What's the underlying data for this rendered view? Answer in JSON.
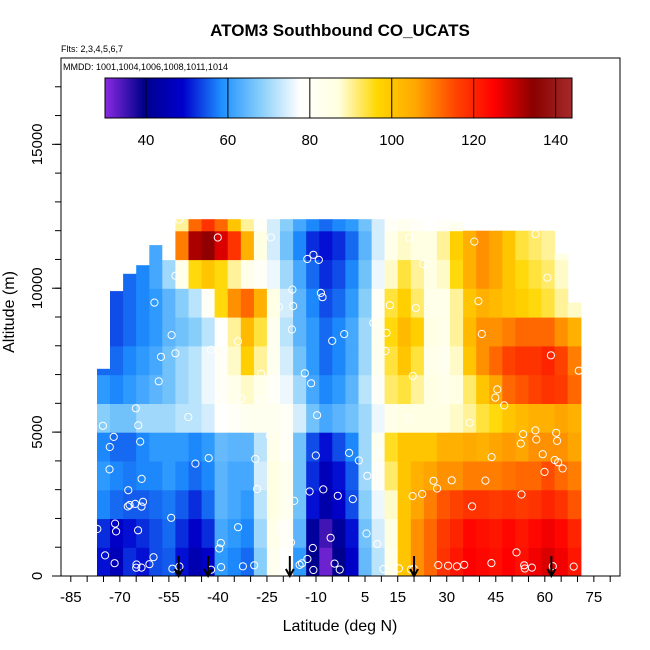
{
  "chart_data": {
    "type": "heatmap",
    "title": "ATOM3 Southbound CO_UCATS",
    "subtitle_flights": "Flts: 2,3,4,5,6,7",
    "subtitle_dates": "MMDD: 1001,1004,1006,1008,1011,1014",
    "xlabel": "Latitude (deg N)",
    "ylabel": "Altitude (m)",
    "xlim": [
      -88,
      83
    ],
    "ylim": [
      0,
      18000
    ],
    "x_ticks": [
      "-85",
      "-70",
      "-55",
      "-40",
      "-25",
      "-10",
      "5",
      "15",
      "30",
      "45",
      "60",
      "75"
    ],
    "y_ticks": [
      "0",
      "5000",
      "10000",
      "15000"
    ],
    "colorbar": {
      "range": [
        30,
        144
      ],
      "ticks": [
        "40",
        "60",
        "80",
        "100",
        "120",
        "140"
      ],
      "colors": [
        "#8a2be2",
        "#00008b",
        "#0000cd",
        "#1e90ff",
        "#87cefa",
        "#ffffff",
        "#ffffe0",
        "#ffd700",
        "#ffa500",
        "#ff4500",
        "#ff0000",
        "#8b0000",
        "#a52a2a"
      ]
    },
    "latitude_columns": [
      -75,
      -71,
      -67,
      -63,
      -59,
      -55,
      -51,
      -47,
      -43,
      -39,
      -35,
      -31,
      -27,
      -23,
      -19,
      -15,
      -11,
      -7,
      -3,
      1,
      5,
      9,
      13,
      17,
      21,
      25,
      29,
      33,
      37,
      41,
      45,
      49,
      53,
      57,
      61,
      65,
      69
    ],
    "altitude_bands": [
      0,
      1000,
      2000,
      3000,
      4000,
      5000,
      6000,
      7000,
      8000,
      9000,
      10000,
      11000,
      12000
    ],
    "top_altitude": [
      7200,
      9900,
      10500,
      10800,
      11500,
      12000,
      12400,
      12400,
      12400,
      12400,
      12400,
      12400,
      12400,
      12400,
      12400,
      12400,
      12400,
      12400,
      12400,
      12400,
      12400,
      12400,
      12400,
      12400,
      12400,
      12400,
      12400,
      12300,
      12000,
      12000,
      12000,
      12000,
      12000,
      12000,
      12000,
      11200,
      9500
    ],
    "values": [
      [
        50,
        46,
        52,
        50,
        54,
        55,
        50,
        45,
        48,
        60,
        58,
        56,
        68,
        82,
        78,
        60,
        40,
        32,
        40,
        48,
        65,
        72,
        84,
        100,
        108,
        112,
        118,
        122,
        125,
        124,
        123,
        125,
        123,
        126,
        128,
        126,
        122
      ],
      [
        52,
        48,
        50,
        52,
        54,
        56,
        52,
        48,
        52,
        62,
        60,
        58,
        70,
        84,
        80,
        64,
        42,
        35,
        42,
        50,
        66,
        74,
        86,
        100,
        108,
        112,
        117,
        120,
        124,
        123,
        122,
        124,
        122,
        124,
        126,
        124,
        120
      ],
      [
        58,
        56,
        55,
        55,
        56,
        57,
        55,
        52,
        56,
        64,
        62,
        60,
        72,
        86,
        82,
        66,
        50,
        44,
        48,
        54,
        68,
        76,
        88,
        100,
        106,
        110,
        114,
        116,
        118,
        118,
        117,
        118,
        117,
        118,
        120,
        118,
        114
      ],
      [
        60,
        58,
        57,
        58,
        58,
        60,
        58,
        56,
        58,
        64,
        62,
        62,
        74,
        86,
        82,
        66,
        52,
        46,
        50,
        55,
        70,
        80,
        92,
        100,
        104,
        106,
        108,
        108,
        110,
        110,
        110,
        111,
        112,
        112,
        115,
        112,
        110
      ],
      [
        58,
        56,
        56,
        58,
        60,
        60,
        60,
        58,
        60,
        65,
        64,
        64,
        72,
        84,
        80,
        66,
        54,
        50,
        54,
        58,
        70,
        82,
        95,
        100,
        100,
        100,
        104,
        104,
        105,
        104,
        106,
        107,
        106,
        108,
        108,
        108,
        106
      ],
      [
        68,
        66,
        66,
        70,
        70,
        70,
        72,
        72,
        74,
        78,
        80,
        82,
        82,
        82,
        80,
        74,
        66,
        62,
        64,
        66,
        70,
        76,
        84,
        86,
        86,
        86,
        86,
        88,
        90,
        94,
        96,
        100,
        102,
        104,
        104,
        106,
        104
      ],
      [
        60,
        58,
        60,
        62,
        64,
        66,
        70,
        72,
        76,
        80,
        84,
        88,
        84,
        80,
        76,
        70,
        62,
        58,
        60,
        64,
        72,
        80,
        92,
        94,
        90,
        86,
        84,
        86,
        92,
        100,
        106,
        112,
        114,
        116,
        118,
        117,
        112
      ],
      [
        56,
        56,
        58,
        60,
        62,
        66,
        70,
        72,
        76,
        80,
        88,
        98,
        90,
        82,
        74,
        66,
        60,
        56,
        58,
        62,
        70,
        82,
        94,
        100,
        94,
        84,
        82,
        88,
        100,
        108,
        112,
        116,
        118,
        118,
        120,
        116,
        110
      ],
      [
        54,
        54,
        56,
        58,
        60,
        64,
        66,
        68,
        72,
        78,
        90,
        102,
        94,
        82,
        72,
        64,
        60,
        56,
        58,
        62,
        70,
        82,
        96,
        102,
        98,
        86,
        84,
        90,
        102,
        108,
        108,
        110,
        112,
        112,
        112,
        108,
        104
      ],
      [
        56,
        54,
        56,
        58,
        60,
        64,
        68,
        72,
        80,
        96,
        108,
        112,
        104,
        86,
        74,
        64,
        58,
        54,
        56,
        60,
        68,
        80,
        94,
        98,
        92,
        84,
        84,
        90,
        100,
        104,
        102,
        100,
        98,
        96,
        94,
        90,
        88
      ],
      [
        58,
        56,
        56,
        58,
        62,
        70,
        84,
        96,
        100,
        96,
        90,
        84,
        80,
        76,
        70,
        62,
        56,
        52,
        54,
        58,
        66,
        76,
        88,
        94,
        90,
        86,
        88,
        96,
        104,
        108,
        106,
        100,
        96,
        94,
        92,
        88,
        86
      ],
      [
        60,
        58,
        56,
        58,
        62,
        78,
        110,
        132,
        134,
        128,
        118,
        104,
        86,
        74,
        66,
        58,
        52,
        50,
        52,
        56,
        64,
        74,
        84,
        88,
        86,
        86,
        90,
        98,
        104,
        108,
        106,
        100,
        94,
        92,
        90,
        86,
        84
      ],
      [
        62,
        60,
        58,
        58,
        62,
        70,
        90,
        112,
        118,
        112,
        100,
        90,
        80,
        74,
        68,
        62,
        58,
        56,
        58,
        60,
        66,
        74,
        80,
        82,
        80,
        78,
        80,
        82,
        84,
        84,
        82,
        80,
        78,
        76,
        74,
        72,
        70
      ]
    ]
  }
}
